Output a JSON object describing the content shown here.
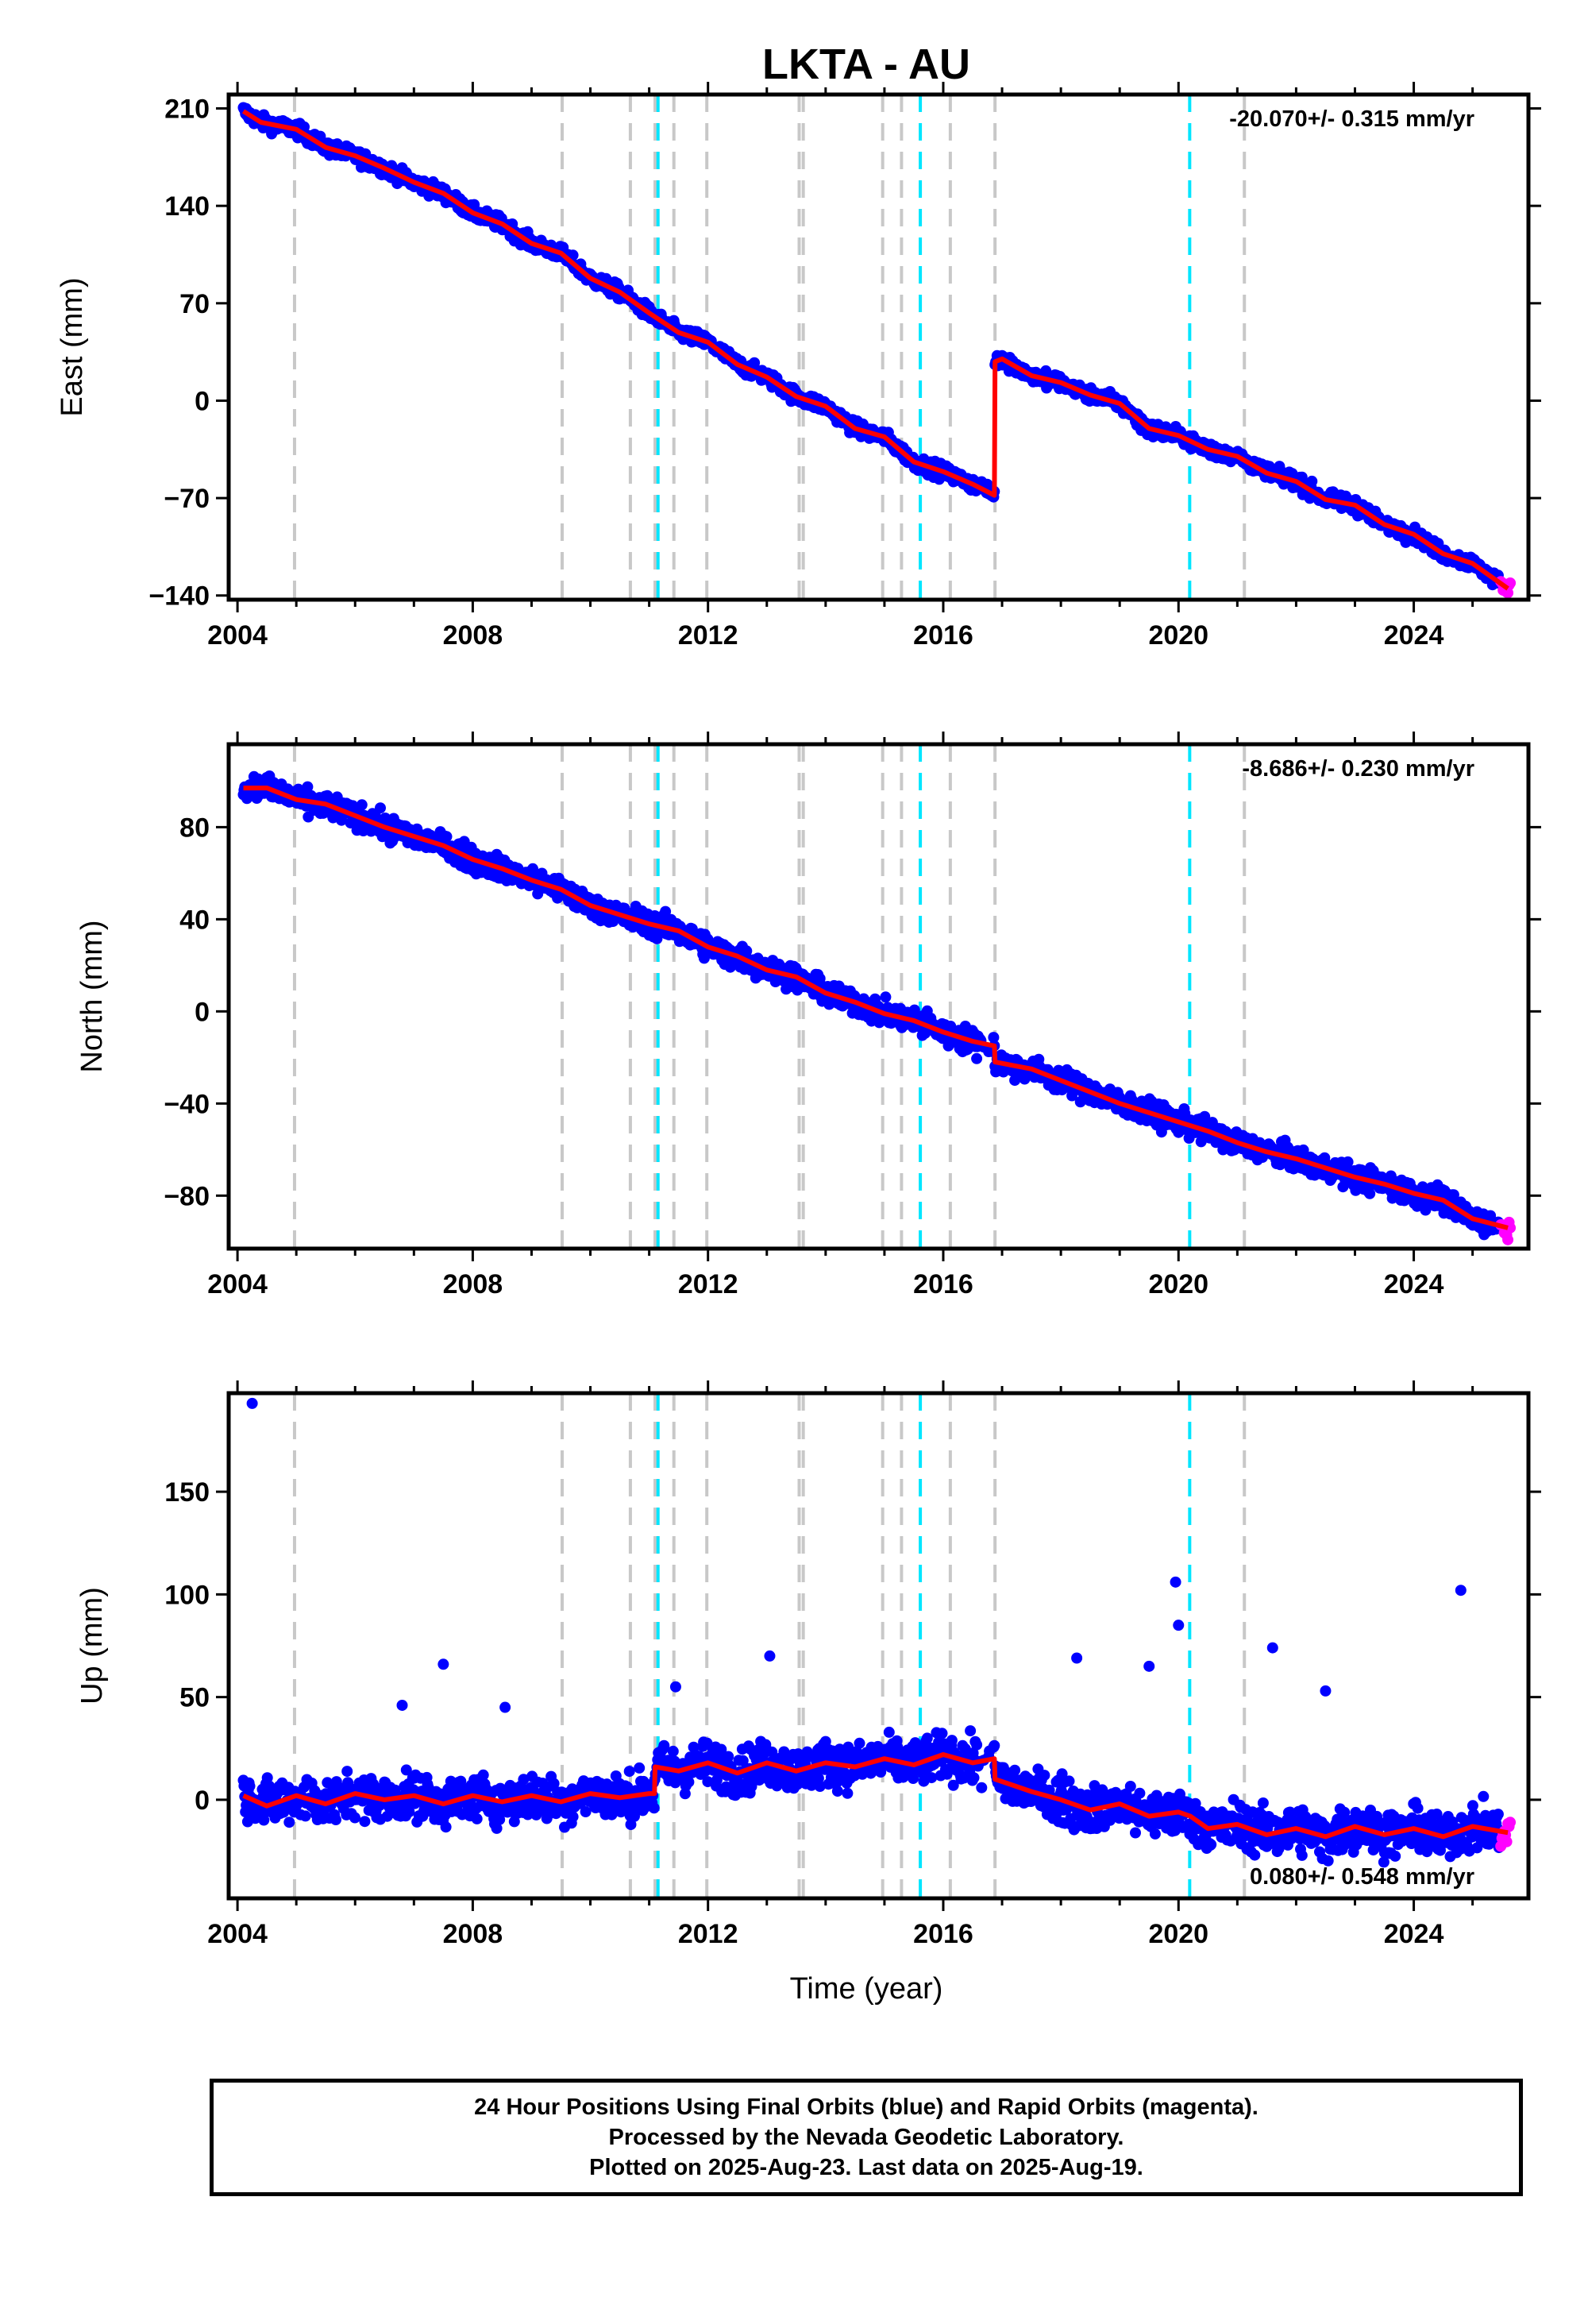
{
  "title": "LKTA - AU",
  "xlabel": "Time (year)",
  "footer": {
    "line1": "24 Hour Positions Using Final Orbits (blue) and Rapid Orbits (magenta).",
    "line2": "Processed by the Nevada Geodetic Laboratory.",
    "line3": "Plotted on 2025-Aug-23. Last data on 2025-Aug-19."
  },
  "colors": {
    "final_orbits": "#0000ff",
    "rapid_orbits": "#ff00ff",
    "model_fit": "#ff0000",
    "equipment_change": "#c8c8c8",
    "earthquake": "#00e6ff"
  },
  "chart_data": [
    {
      "type": "scatter",
      "panel": "east",
      "ylabel": "East (mm)",
      "rate_label": "-20.070+/- 0.315 mm/yr",
      "rate_position": "top-right",
      "xlim": [
        2003.85,
        2025.95
      ],
      "ylim": [
        -143,
        220
      ],
      "x_ticks": [
        2004,
        2008,
        2012,
        2016,
        2020,
        2024
      ],
      "y_ticks": [
        210,
        140,
        70,
        0,
        -70,
        -140
      ],
      "y_tick_labels": [
        "210",
        "140",
        "70",
        "0",
        "−70",
        "−140"
      ],
      "grid": false,
      "equipment_change_epochs": [
        2004.97,
        2009.52,
        2010.68,
        2011.1,
        2011.42,
        2011.98,
        2013.55,
        2013.62,
        2014.97,
        2015.29,
        2016.12,
        2016.88,
        2021.12
      ],
      "earthquake_epochs": [
        2011.15,
        2015.61,
        2020.19
      ],
      "fit_x": [
        2004.1,
        2004.4,
        2005.0,
        2005.5,
        2006.0,
        2006.5,
        2007.0,
        2007.5,
        2008.0,
        2008.5,
        2009.0,
        2009.5,
        2010.0,
        2010.5,
        2011.0,
        2011.5,
        2012.0,
        2012.5,
        2013.0,
        2013.5,
        2014.0,
        2014.5,
        2015.0,
        2015.5,
        2016.0,
        2016.5,
        2016.87,
        2016.88,
        2017.0,
        2017.5,
        2018.0,
        2018.5,
        2019.0,
        2019.5,
        2020.0,
        2020.5,
        2021.0,
        2021.5,
        2022.0,
        2022.5,
        2023.0,
        2023.5,
        2024.0,
        2024.5,
        2025.0,
        2025.6
      ],
      "fit_y": [
        208,
        200,
        195,
        182,
        176,
        167,
        157,
        149,
        135,
        127,
        113,
        106,
        88,
        78,
        63,
        49,
        42,
        26,
        17,
        3,
        -4,
        -20,
        -26,
        -44,
        -51,
        -60,
        -68,
        28,
        30,
        18,
        13,
        4,
        -2,
        -20,
        -25,
        -35,
        -40,
        -52,
        -58,
        -71,
        -75,
        -89,
        -96,
        -110,
        -117,
        -135
      ]
    },
    {
      "type": "scatter",
      "panel": "north",
      "ylabel": "North (mm)",
      "rate_label": "-8.686+/- 0.230 mm/yr",
      "rate_position": "top-right",
      "xlim": [
        2003.85,
        2025.95
      ],
      "ylim": [
        -103,
        116
      ],
      "x_ticks": [
        2004,
        2008,
        2012,
        2016,
        2020,
        2024
      ],
      "y_ticks": [
        80,
        40,
        0,
        -40,
        -80
      ],
      "y_tick_labels": [
        "80",
        "40",
        "0",
        "−40",
        "−80"
      ],
      "grid": false,
      "equipment_change_epochs": [
        2004.97,
        2009.52,
        2010.68,
        2011.1,
        2011.42,
        2011.98,
        2013.55,
        2013.62,
        2014.97,
        2015.29,
        2016.12,
        2016.88,
        2021.12
      ],
      "earthquake_epochs": [
        2011.15,
        2015.61,
        2020.19
      ],
      "fit_x": [
        2004.1,
        2004.5,
        2005.0,
        2005.5,
        2006.0,
        2006.5,
        2007.0,
        2007.5,
        2008.0,
        2008.5,
        2009.0,
        2009.5,
        2010.0,
        2010.5,
        2011.0,
        2011.5,
        2012.0,
        2012.5,
        2013.0,
        2013.5,
        2014.0,
        2014.5,
        2015.0,
        2015.5,
        2016.0,
        2016.5,
        2016.87,
        2016.88,
        2017.5,
        2018.0,
        2018.5,
        2019.0,
        2019.5,
        2020.0,
        2020.5,
        2021.0,
        2021.5,
        2022.0,
        2022.5,
        2023.0,
        2023.5,
        2024.0,
        2024.5,
        2025.0,
        2025.6
      ],
      "fit_y": [
        97,
        97,
        92,
        90,
        85,
        80,
        76,
        72,
        66,
        62,
        57,
        53,
        46,
        42,
        38,
        35,
        28,
        24,
        18,
        15,
        8,
        4,
        -1,
        -4,
        -9,
        -13,
        -15,
        -22,
        -25,
        -30,
        -35,
        -40,
        -44,
        -48,
        -52,
        -57,
        -61,
        -64,
        -68,
        -72,
        -75,
        -79,
        -82,
        -90,
        -94
      ]
    },
    {
      "type": "scatter",
      "panel": "up",
      "ylabel": "Up (mm)",
      "rate_label": "0.080+/- 0.548 mm/yr",
      "rate_position": "bottom-right",
      "xlim": [
        2003.85,
        2025.95
      ],
      "ylim": [
        -48,
        198
      ],
      "x_ticks": [
        2004,
        2008,
        2012,
        2016,
        2020,
        2024
      ],
      "y_ticks": [
        150,
        100,
        50,
        0
      ],
      "y_tick_labels": [
        "150",
        "100",
        "50",
        "0"
      ],
      "grid": false,
      "equipment_change_epochs": [
        2004.97,
        2009.52,
        2010.68,
        2011.1,
        2011.42,
        2011.98,
        2013.55,
        2013.62,
        2014.97,
        2015.29,
        2016.12,
        2016.88,
        2021.12
      ],
      "earthquake_epochs": [
        2011.15,
        2015.61,
        2020.19
      ],
      "fit_x": [
        2004.1,
        2004.5,
        2005.0,
        2005.5,
        2006.0,
        2006.5,
        2007.0,
        2007.5,
        2008.0,
        2008.5,
        2009.0,
        2009.5,
        2010.0,
        2010.5,
        2011.0,
        2011.09,
        2011.1,
        2011.5,
        2012.0,
        2012.5,
        2013.0,
        2013.5,
        2014.0,
        2014.5,
        2015.0,
        2015.5,
        2016.0,
        2016.5,
        2016.87,
        2016.88,
        2017.5,
        2018.0,
        2018.5,
        2019.0,
        2019.5,
        2020.0,
        2020.2,
        2020.5,
        2021.0,
        2021.5,
        2022.0,
        2022.5,
        2023.0,
        2023.5,
        2024.0,
        2024.5,
        2025.0,
        2025.6
      ],
      "fit_y": [
        2,
        -3,
        2,
        -2,
        3,
        0,
        2,
        -2,
        2,
        -1,
        2,
        -1,
        3,
        1,
        3,
        3,
        16,
        14,
        18,
        13,
        18,
        14,
        18,
        16,
        20,
        17,
        22,
        18,
        20,
        10,
        4,
        0,
        -5,
        -2,
        -8,
        -6,
        -8,
        -14,
        -12,
        -17,
        -14,
        -18,
        -13,
        -17,
        -14,
        -18,
        -13,
        -16
      ],
      "outliers_x": [
        2004.25,
        2006.8,
        2007.5,
        2008.55,
        2011.45,
        2013.05,
        2018.27,
        2019.5,
        2019.95,
        2020.0,
        2021.6,
        2022.5,
        2024.8
      ],
      "outliers_y": [
        193,
        46,
        66,
        45,
        55,
        70,
        69,
        65,
        106,
        85,
        74,
        53,
        102
      ]
    }
  ]
}
